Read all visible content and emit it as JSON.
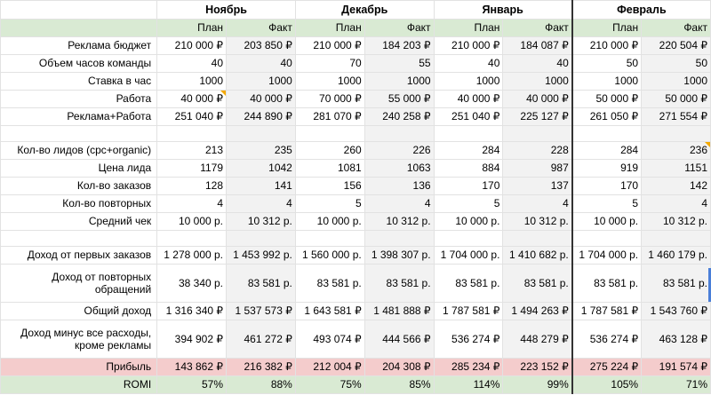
{
  "months": [
    "Ноябрь",
    "Декабрь",
    "Январь",
    "Февраль"
  ],
  "subheaders": [
    "План",
    "Факт",
    "План",
    "Факт",
    "План",
    "Факт",
    "План",
    "Факт"
  ],
  "rows": [
    {
      "label": "Реклама бюджет",
      "values": [
        "210 000 ₽",
        "203 850 ₽",
        "210 000 ₽",
        "184 203 ₽",
        "210 000 ₽",
        "184 087 ₽",
        "210 000 ₽",
        "220 504 ₽"
      ]
    },
    {
      "label": "Объем часов команды",
      "values": [
        "40",
        "40",
        "70",
        "55",
        "40",
        "40",
        "50",
        "50"
      ]
    },
    {
      "label": "Ставка в час",
      "values": [
        "1000",
        "1000",
        "1000",
        "1000",
        "1000",
        "1000",
        "1000",
        "1000"
      ]
    },
    {
      "label": "Работа",
      "values": [
        "40 000 ₽",
        "40 000 ₽",
        "70 000 ₽",
        "55 000 ₽",
        "40 000 ₽",
        "40 000 ₽",
        "50 000 ₽",
        "50 000 ₽"
      ]
    },
    {
      "label": "Реклама+Работа",
      "values": [
        "251 040 ₽",
        "244 890 ₽",
        "281 070 ₽",
        "240 258 ₽",
        "251 040 ₽",
        "225 127 ₽",
        "261 050 ₽",
        "271 554 ₽"
      ]
    },
    {
      "label": "",
      "values": [
        "",
        "",
        "",
        "",
        "",
        "",
        "",
        ""
      ]
    },
    {
      "label": "Кол-во лидов (cpc+organic)",
      "values": [
        "213",
        "235",
        "260",
        "226",
        "284",
        "228",
        "284",
        "236"
      ]
    },
    {
      "label": "Цена лида",
      "values": [
        "1179",
        "1042",
        "1081",
        "1063",
        "884",
        "987",
        "919",
        "1151"
      ]
    },
    {
      "label": "Кол-во заказов",
      "values": [
        "128",
        "141",
        "156",
        "136",
        "170",
        "137",
        "170",
        "142"
      ]
    },
    {
      "label": "Кол-во повторных",
      "values": [
        "4",
        "4",
        "5",
        "4",
        "5",
        "4",
        "5",
        "4"
      ]
    },
    {
      "label": "Средний чек",
      "values": [
        "10 000 р.",
        "10 312 р.",
        "10 000 р.",
        "10 312 р.",
        "10 000 р.",
        "10 312 р.",
        "10 000 р.",
        "10 312 р."
      ]
    },
    {
      "label": "",
      "values": [
        "",
        "",
        "",
        "",
        "",
        "",
        "",
        ""
      ]
    },
    {
      "label": "Доход от первых заказов",
      "values": [
        "1 278 000 р.",
        "1 453 992 р.",
        "1 560 000 р.",
        "1 398 307 р.",
        "1 704 000 р.",
        "1 410 682 р.",
        "1 704 000 р.",
        "1 460 179 р."
      ]
    },
    {
      "label": "Доход от повторных обращений",
      "values": [
        "38 340 р.",
        "83 581 р.",
        "83 581 р.",
        "83 581 р.",
        "83 581 р.",
        "83 581 р.",
        "83 581 р.",
        "83 581 р."
      ]
    },
    {
      "label": "Общий доход",
      "values": [
        "1 316 340 ₽",
        "1 537 573 ₽",
        "1 643 581 ₽",
        "1 481 888 ₽",
        "1 787 581 ₽",
        "1 494 263 ₽",
        "1 787 581 ₽",
        "1 543 760 ₽"
      ]
    },
    {
      "label": "Доход минус все расходы, кроме рекламы",
      "values": [
        "394 902 ₽",
        "461 272 ₽",
        "493 074 ₽",
        "444 566 ₽",
        "536 274 ₽",
        "448 279 ₽",
        "536 274 ₽",
        "463 128 ₽"
      ]
    },
    {
      "label": "Прибыль",
      "values": [
        "143 862 ₽",
        "216 382 ₽",
        "212 004 ₽",
        "204 308 ₽",
        "285 234 ₽",
        "223 152 ₽",
        "275 224 ₽",
        "191 574 ₽"
      ]
    },
    {
      "label": "ROMI",
      "values": [
        "57%",
        "88%",
        "75%",
        "85%",
        "114%",
        "99%",
        "105%",
        "71%"
      ]
    }
  ]
}
